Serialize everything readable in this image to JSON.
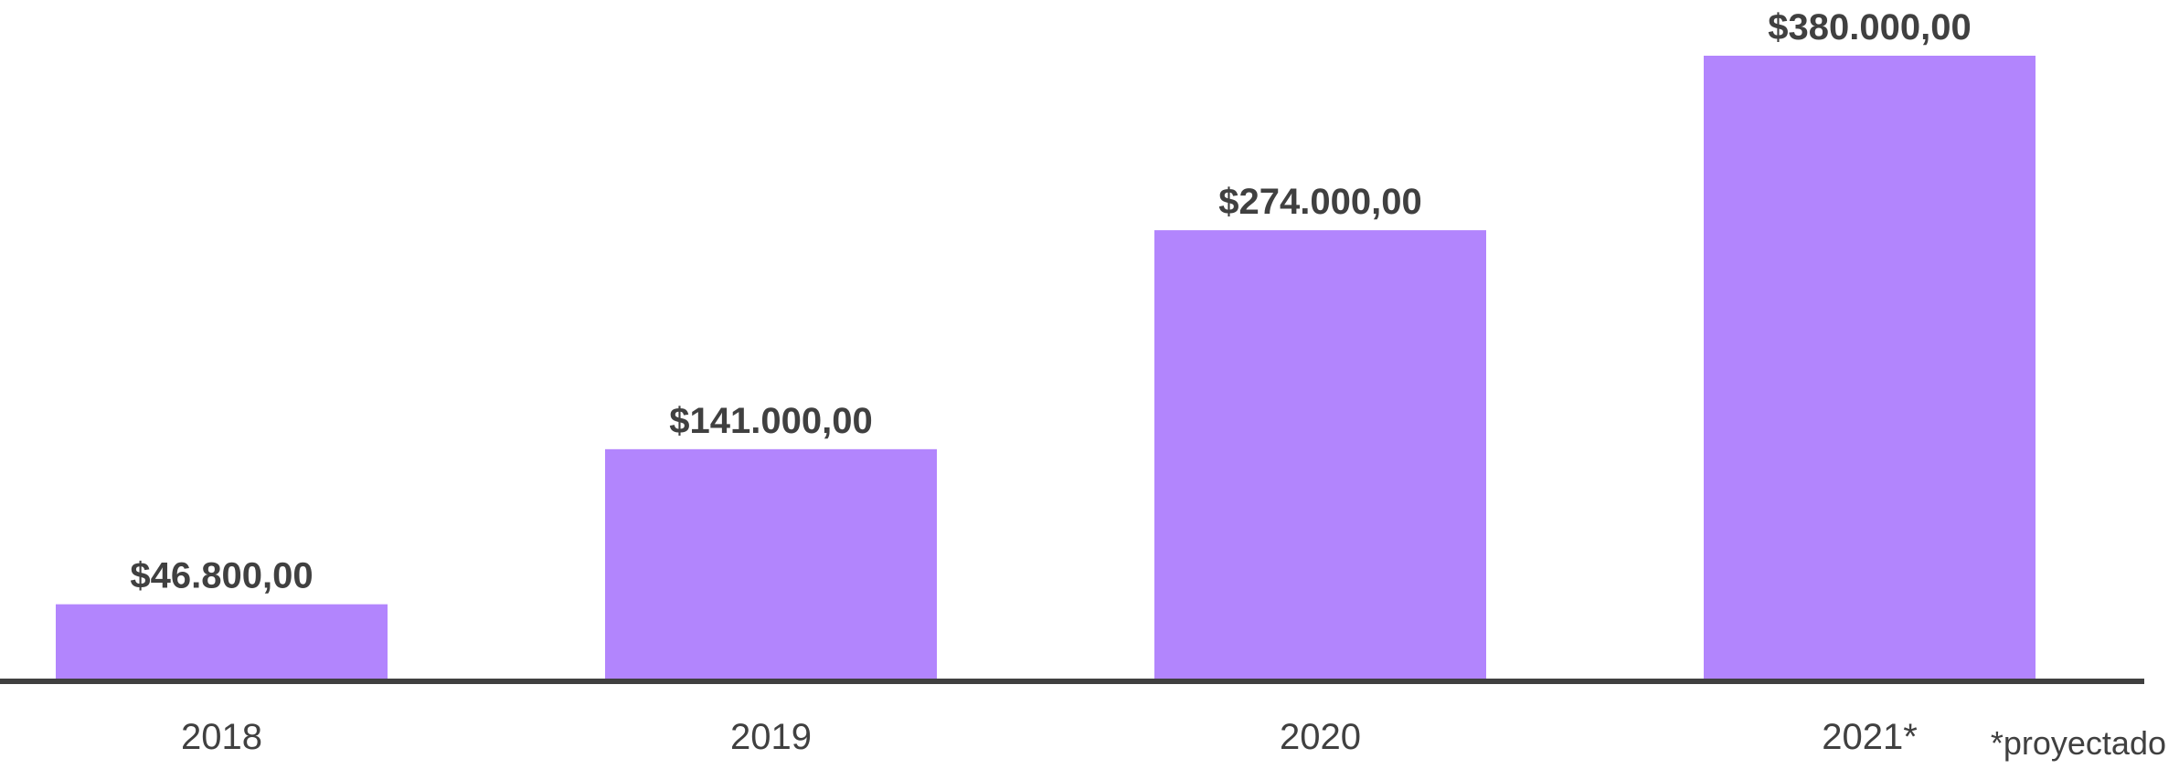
{
  "chart_data": {
    "type": "bar",
    "title": "",
    "xlabel": "",
    "ylabel": "",
    "categories": [
      "2018",
      "2019",
      "2020",
      "2021*"
    ],
    "values": [
      46800,
      141000,
      274000,
      380000
    ],
    "data_labels": [
      "$46.800,00",
      "$141.000,00",
      "$274.000,00",
      "$380.000,00"
    ],
    "ylim": [
      0,
      380000
    ],
    "grid": false,
    "legend": "none",
    "bar_color": "#b285fd",
    "axis_color": "#404040",
    "text_color": "#404040",
    "annotation": "*proyectado"
  }
}
